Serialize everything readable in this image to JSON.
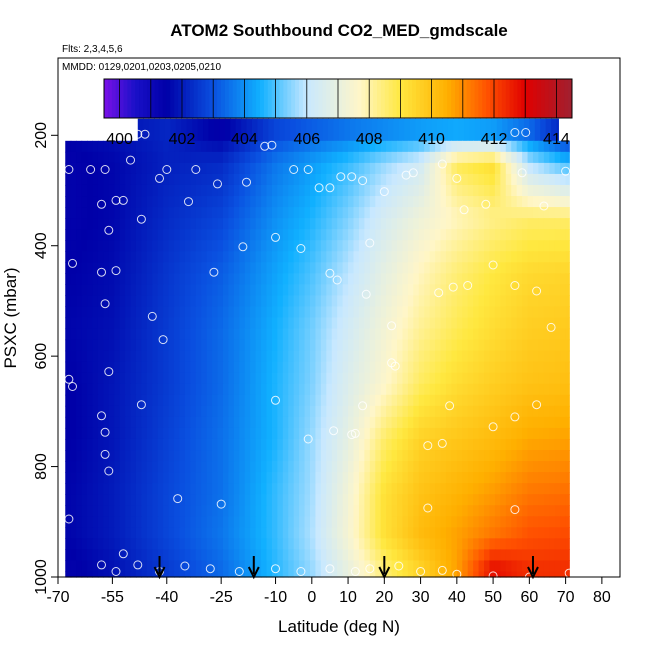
{
  "chart_data": {
    "type": "heatmap",
    "title": "ATOM2 Southbound CO2_MED_gmdscale",
    "annotations": [
      "Flts: 2,3,4,5,6",
      "MMDD: 0129,0201,0203,0205,0210"
    ],
    "xlabel": "Latitude (deg N)",
    "ylabel": "PSXC (mbar)",
    "xlim": [
      -70,
      85
    ],
    "ylim": [
      1000,
      60
    ],
    "y_reversed": true,
    "x_ticks": [
      -70,
      -55,
      -40,
      -25,
      -10,
      0,
      10,
      20,
      30,
      40,
      50,
      60,
      70,
      80
    ],
    "x_tick_labels": [
      "-70",
      "-55",
      "-40",
      "-25",
      "-10",
      "0",
      "10",
      "20",
      "30",
      "40",
      "50",
      "60",
      "70",
      "80"
    ],
    "y_ticks": [
      200,
      400,
      600,
      800,
      1000
    ],
    "y_tick_labels": [
      "200",
      "400",
      "600",
      "800",
      "1000"
    ],
    "colorbar": {
      "range": [
        399.5,
        414.5
      ],
      "ticks": [
        400,
        402,
        404,
        406,
        408,
        410,
        412,
        414
      ],
      "tick_labels": [
        "400",
        "402",
        "404",
        "406",
        "408",
        "410",
        "412",
        "414"
      ],
      "colors": [
        "#7a10e8",
        "#1a10c8",
        "#0000a8",
        "#0a50e0",
        "#10b0ff",
        "#c8e8ff",
        "#fff6c8",
        "#ffe840",
        "#ffb000",
        "#ff5000",
        "#e00000",
        "#a02030"
      ],
      "color_values": [
        399.5,
        400.5,
        401.5,
        403,
        404.5,
        406,
        407.7,
        409,
        410.5,
        411.8,
        413,
        414.5
      ]
    },
    "profiles": [
      {
        "lat": -66,
        "values": [
          401.6,
          401.4,
          401.4,
          401.5,
          401.6,
          401.5,
          401.5,
          401.6,
          401.6,
          401.4
        ]
      },
      {
        "lat": -55,
        "values": [
          401.8,
          401.6,
          401.6,
          401.7,
          401.8,
          401.9,
          401.9,
          402.0,
          402.0,
          401.8
        ]
      },
      {
        "lat": -40,
        "values": [
          402.2,
          402.1,
          402.3,
          402.5,
          402.6,
          402.6,
          402.7,
          402.8,
          402.8,
          402.6
        ]
      },
      {
        "lat": -25,
        "values": [
          401.4,
          402.3,
          402.8,
          403.2,
          403.4,
          403.4,
          403.5,
          403.5,
          403.6,
          403.4
        ]
      },
      {
        "lat": -10,
        "values": [
          402.8,
          403.6,
          404.0,
          404.3,
          404.5,
          404.6,
          404.6,
          404.8,
          404.8,
          404.7
        ]
      },
      {
        "lat": 0,
        "values": [
          403.2,
          404.2,
          404.6,
          405.0,
          405.3,
          405.4,
          405.6,
          405.7,
          405.8,
          405.6
        ]
      },
      {
        "lat": 10,
        "values": [
          403.6,
          404.8,
          405.4,
          405.9,
          406.3,
          406.6,
          406.9,
          407.3,
          407.4,
          407.0
        ]
      },
      {
        "lat": 20,
        "values": [
          403.9,
          405.6,
          406.4,
          406.9,
          407.3,
          407.6,
          408.6,
          409.2,
          409.2,
          408.5
        ]
      },
      {
        "lat": 30,
        "values": [
          404.2,
          406.3,
          407.2,
          407.8,
          408.2,
          408.7,
          409.6,
          410.0,
          410.2,
          409.6
        ]
      },
      {
        "lat": 40,
        "values": [
          404.4,
          408.8,
          407.8,
          408.5,
          408.8,
          409.3,
          409.9,
          410.4,
          410.7,
          410.7
        ]
      },
      {
        "lat": 50,
        "values": [
          404.2,
          409.3,
          408.3,
          409.0,
          409.3,
          409.7,
          410.2,
          410.8,
          411.3,
          412.8
        ]
      },
      {
        "lat": 60,
        "values": [
          403.4,
          405.8,
          408.6,
          409.4,
          409.7,
          410.0,
          410.6,
          411.3,
          411.8,
          412.3
        ]
      },
      {
        "lat": 70,
        "values": [
          402.0,
          404.8,
          408.6,
          409.5,
          409.8,
          410.1,
          410.7,
          411.4,
          411.9,
          412.3
        ]
      }
    ],
    "profile_pressures": [
      195,
      250,
      350,
      450,
      550,
      650,
      750,
      850,
      925,
      985
    ],
    "data_extent": {
      "top_band": {
        "lat": [
          -48,
          68
        ],
        "pressure": [
          170,
          210
        ]
      },
      "main": {
        "lat": [
          -68,
          71
        ],
        "pressure": [
          210,
          1000
        ]
      }
    },
    "points": [
      [
        -48,
        198
      ],
      [
        -46,
        198
      ],
      [
        -13,
        220
      ],
      [
        -11,
        218
      ],
      [
        56,
        195
      ],
      [
        59,
        195
      ],
      [
        -67,
        262
      ],
      [
        -61,
        262
      ],
      [
        -57,
        262
      ],
      [
        -50,
        245
      ],
      [
        -42,
        278
      ],
      [
        -40,
        262
      ],
      [
        -32,
        262
      ],
      [
        -26,
        288
      ],
      [
        -18,
        285
      ],
      [
        -5,
        262
      ],
      [
        -1,
        262
      ],
      [
        2,
        295
      ],
      [
        5,
        295
      ],
      [
        8,
        275
      ],
      [
        11,
        275
      ],
      [
        14,
        282
      ],
      [
        20,
        302
      ],
      [
        26,
        272
      ],
      [
        28,
        268
      ],
      [
        36,
        252
      ],
      [
        40,
        278
      ],
      [
        58,
        268
      ],
      [
        70,
        265
      ],
      [
        -58,
        325
      ],
      [
        -54,
        318
      ],
      [
        -52,
        318
      ],
      [
        -56,
        372
      ],
      [
        -47,
        352
      ],
      [
        -34,
        320
      ],
      [
        -19,
        402
      ],
      [
        -10,
        385
      ],
      [
        -3,
        405
      ],
      [
        16,
        395
      ],
      [
        42,
        335
      ],
      [
        48,
        325
      ],
      [
        64,
        328
      ],
      [
        -66,
        432
      ],
      [
        -58,
        448
      ],
      [
        -54,
        445
      ],
      [
        -57,
        505
      ],
      [
        -44,
        528
      ],
      [
        -27,
        448
      ],
      [
        5,
        450
      ],
      [
        7,
        462
      ],
      [
        15,
        488
      ],
      [
        22,
        545
      ],
      [
        35,
        485
      ],
      [
        39,
        475
      ],
      [
        43,
        472
      ],
      [
        50,
        435
      ],
      [
        56,
        472
      ],
      [
        62,
        482
      ],
      [
        66,
        548
      ],
      [
        -41,
        570
      ],
      [
        -56,
        628
      ],
      [
        -67,
        642
      ],
      [
        -66,
        655
      ],
      [
        -47,
        688
      ],
      [
        -10,
        680
      ],
      [
        14,
        690
      ],
      [
        22,
        612
      ],
      [
        23,
        618
      ],
      [
        38,
        690
      ],
      [
        50,
        728
      ],
      [
        56,
        710
      ],
      [
        62,
        688
      ],
      [
        -58,
        708
      ],
      [
        -57,
        738
      ],
      [
        -1,
        750
      ],
      [
        6,
        735
      ],
      [
        11,
        742
      ],
      [
        12,
        740
      ],
      [
        32,
        762
      ],
      [
        36,
        758
      ],
      [
        -57,
        778
      ],
      [
        -56,
        808
      ],
      [
        -37,
        858
      ],
      [
        -25,
        868
      ],
      [
        32,
        875
      ],
      [
        56,
        878
      ],
      [
        -67,
        895
      ],
      [
        -58,
        978
      ],
      [
        -54,
        990
      ],
      [
        -52,
        958
      ],
      [
        -48,
        978
      ],
      [
        -42,
        990
      ],
      [
        -35,
        980
      ],
      [
        -28,
        985
      ],
      [
        -20,
        990
      ],
      [
        -10,
        985
      ],
      [
        -3,
        990
      ],
      [
        5,
        985
      ],
      [
        12,
        990
      ],
      [
        16,
        985
      ],
      [
        24,
        980
      ],
      [
        30,
        990
      ],
      [
        36,
        988
      ],
      [
        40,
        995
      ],
      [
        50,
        998
      ],
      [
        60,
        1000
      ],
      [
        71,
        993
      ]
    ],
    "arrow_lats": [
      -42,
      -16,
      20,
      61
    ]
  }
}
